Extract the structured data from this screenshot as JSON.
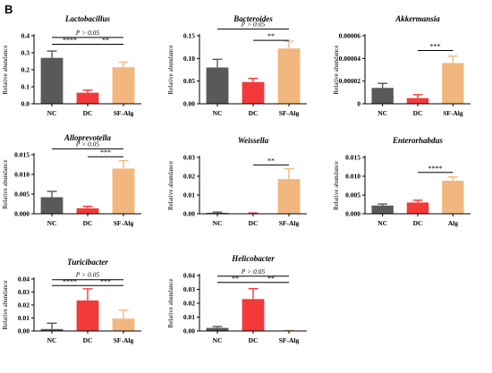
{
  "figure_label": "B",
  "y_axis_label": "Relative abundance",
  "colors": {
    "NC": "#595959",
    "DC": "#f23a3a",
    "SF-Alg": "#f2b77e"
  },
  "chart_data": [
    {
      "type": "bar",
      "title": "Lactobacillus",
      "ylabel": "Relative abundance",
      "categories": [
        "NC",
        "DC",
        "SF-Alg"
      ],
      "values": [
        0.27,
        0.065,
        0.215
      ],
      "errors": [
        0.04,
        0.015,
        0.03
      ],
      "ylim": [
        0,
        0.4
      ],
      "yticks": [
        "0.0",
        "0.1",
        "0.2",
        "0.3",
        "0.4"
      ],
      "annotations": [
        {
          "from": 0,
          "to": 1,
          "level": 0.35,
          "text": "****"
        },
        {
          "from": 1,
          "to": 2,
          "level": 0.35,
          "text": "**"
        },
        {
          "from": 0,
          "to": 2,
          "level": 0.39,
          "text": "P > 0.05"
        }
      ]
    },
    {
      "type": "bar",
      "title": "Bacteroides",
      "ylabel": "Relative abundance",
      "categories": [
        "NC",
        "DC",
        "SF-Alg"
      ],
      "values": [
        0.08,
        0.048,
        0.122
      ],
      "errors": [
        0.018,
        0.008,
        0.016
      ],
      "ylim": [
        0,
        0.15
      ],
      "yticks": [
        "0.00",
        "0.05",
        "0.10",
        "0.15"
      ],
      "annotations": [
        {
          "from": 1,
          "to": 2,
          "level": 0.14,
          "text": "**"
        },
        {
          "from": 0,
          "to": 2,
          "level": 0.165,
          "text": "P > 0.05"
        }
      ]
    },
    {
      "type": "bar",
      "title": "Akkermansia",
      "ylabel": "Relative abundance",
      "categories": [
        "NC",
        "DC",
        "SF-Alg"
      ],
      "values": [
        1.4e-05,
        5e-06,
        3.6e-05
      ],
      "errors": [
        4e-06,
        3e-06,
        6e-06
      ],
      "ylim": [
        0,
        6e-05
      ],
      "yticks": [
        "0",
        "0.00002",
        "0.00004",
        "0.00006"
      ],
      "annotations": [
        {
          "from": 1,
          "to": 2,
          "level": 4.7e-05,
          "text": "***"
        }
      ]
    },
    {
      "type": "bar",
      "title": "Alloprevotella",
      "ylabel": "Relative abundance",
      "categories": [
        "NC",
        "DC",
        "SF-Alg"
      ],
      "values": [
        0.0042,
        0.0014,
        0.0115
      ],
      "errors": [
        0.0015,
        0.0005,
        0.002
      ],
      "ylim": [
        0,
        0.015
      ],
      "yticks": [
        "0.000",
        "0.005",
        "0.010",
        "0.015"
      ],
      "annotations": [
        {
          "from": 1,
          "to": 2,
          "level": 0.0145,
          "text": "***"
        },
        {
          "from": 0,
          "to": 2,
          "level": 0.0165,
          "text": "P > 0.05"
        }
      ]
    },
    {
      "type": "bar",
      "title": "Weissella",
      "ylabel": "Relative abundance",
      "categories": [
        "NC",
        "DC",
        "SF-Alg"
      ],
      "values": [
        0.0005,
        0.0002,
        0.0185
      ],
      "errors": [
        0.0004,
        0.0002,
        0.0055
      ],
      "ylim": [
        0,
        0.03
      ],
      "yticks": [
        "0.00",
        "0.01",
        "0.02",
        "0.03"
      ],
      "annotations": [
        {
          "from": 1,
          "to": 2,
          "level": 0.026,
          "text": "**"
        }
      ]
    },
    {
      "type": "bar",
      "title": "Enterorhabdus",
      "ylabel": "Relative abundance",
      "categories": [
        "NC",
        "DC",
        "Alg"
      ],
      "values": [
        0.0022,
        0.003,
        0.0088
      ],
      "errors": [
        0.0004,
        0.0006,
        0.001
      ],
      "ylim": [
        0,
        0.015
      ],
      "yticks": [
        "0.000",
        "0.005",
        "0.010",
        "0.015"
      ],
      "annotations": [
        {
          "from": 1,
          "to": 2,
          "level": 0.011,
          "text": "****"
        }
      ]
    },
    {
      "type": "bar",
      "title": "Turicibacter",
      "ylabel": "Relative abundance",
      "categories": [
        "NC",
        "DC",
        "SF-Alg"
      ],
      "values": [
        0.0015,
        0.0235,
        0.0095
      ],
      "errors": [
        0.0045,
        0.009,
        0.0065
      ],
      "ylim": [
        0,
        0.04
      ],
      "yticks": [
        "0.00",
        "0.01",
        "0.02",
        "0.03",
        "0.04"
      ],
      "annotations": [
        {
          "from": 0,
          "to": 1,
          "level": 0.035,
          "text": "****"
        },
        {
          "from": 1,
          "to": 2,
          "level": 0.035,
          "text": "***"
        },
        {
          "from": 0,
          "to": 2,
          "level": 0.0395,
          "text": "P > 0.05"
        }
      ]
    },
    {
      "type": "bar",
      "title": "Helicobacter",
      "ylabel": "Relative abundance",
      "categories": [
        "NC",
        "DC",
        "SF-Alg"
      ],
      "values": [
        0.0022,
        0.023,
        0.0002
      ],
      "errors": [
        0.001,
        0.0075,
        0.0002
      ],
      "ylim": [
        0,
        0.04
      ],
      "yticks": [
        "0.00",
        "0.01",
        "0.02",
        "0.03",
        "0.04"
      ],
      "annotations": [
        {
          "from": 0,
          "to": 1,
          "level": 0.035,
          "text": "**"
        },
        {
          "from": 1,
          "to": 2,
          "level": 0.035,
          "text": "**"
        },
        {
          "from": 0,
          "to": 2,
          "level": 0.0395,
          "text": "P > 0.05"
        }
      ]
    }
  ]
}
